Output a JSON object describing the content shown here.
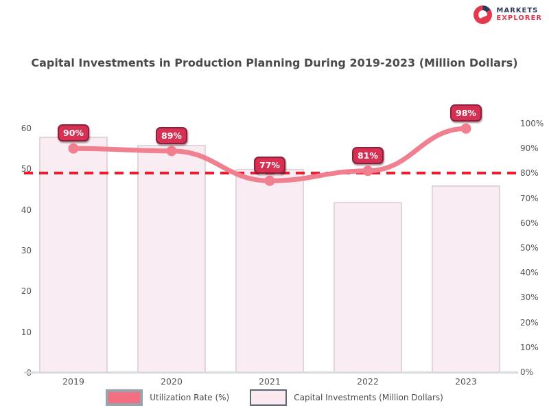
{
  "logo": {
    "line1": "MARKETS",
    "line2": "EXPLORER"
  },
  "title": "Capital Investments in Production Planning During 2019-2023 (Million Dollars)",
  "chart_data": {
    "type": "combo",
    "categories": [
      "2019",
      "2020",
      "2021",
      "2022",
      "2023"
    ],
    "series": [
      {
        "name": "Capital Investments (Million Dollars)",
        "type": "bar",
        "axis": "left",
        "values": [
          58,
          56,
          50,
          42,
          46
        ],
        "color": "#f9ecf2",
        "border_color": "#e3d4dc"
      },
      {
        "name": "Utilization Rate (%)",
        "type": "line",
        "axis": "right",
        "values": [
          90,
          89,
          77,
          81,
          98
        ],
        "point_labels": [
          "90%",
          "89%",
          "77%",
          "81%",
          "98%"
        ],
        "color": "#f0808f",
        "label_bubble_color": "#d63053",
        "label_bubble_border": "#8c1f3a"
      }
    ],
    "left_axis": {
      "min": 0,
      "max": 60,
      "ticks": [
        "60",
        "50",
        "40",
        "30",
        "20",
        "10",
        "0"
      ]
    },
    "right_axis": {
      "min": 0,
      "max": 100,
      "ticks": [
        "100%",
        "90%",
        "80%",
        "70%",
        "60%",
        "50%",
        "40%",
        "30%",
        "20%",
        "10%",
        "0%"
      ]
    },
    "reference_line": {
      "axis": "right",
      "value": 80,
      "style": "dashed",
      "color": "#ea1c2d"
    },
    "legend_position": "bottom",
    "grid": false,
    "legend": [
      {
        "label": "Utilization Rate (%)",
        "swatch_color": "#f46e82",
        "series": "line"
      },
      {
        "label": "Capital Investments (Million Dollars)",
        "swatch_color": "#fbe9f0",
        "series": "bar"
      }
    ]
  }
}
